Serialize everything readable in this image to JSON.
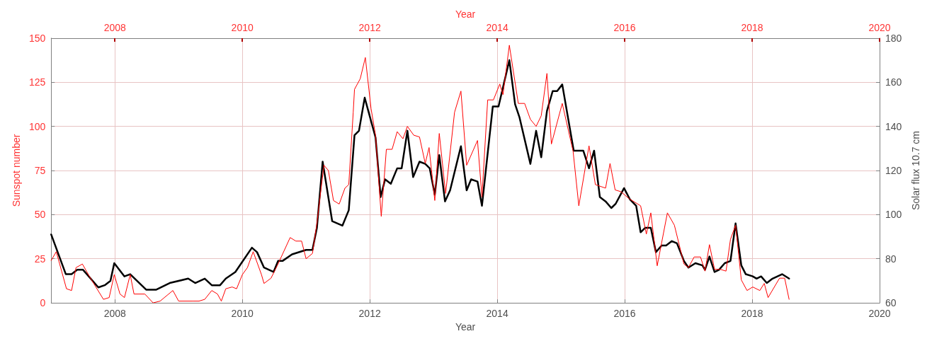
{
  "chart_data": {
    "type": "line",
    "xlabel": "Year",
    "x2label": "Year",
    "ylabel": "Sunspot number",
    "y2label": "Solar flux 10.7 cm",
    "xlim": [
      2007,
      2020
    ],
    "xticks": [
      2008,
      2010,
      2012,
      2014,
      2016,
      2018,
      2020
    ],
    "x2lim": [
      2007,
      2020
    ],
    "x2ticks": [
      2008,
      2010,
      2012,
      2014,
      2016,
      2018,
      2020
    ],
    "ylim": [
      0,
      150
    ],
    "yticks": [
      0,
      25,
      50,
      75,
      100,
      125,
      150
    ],
    "y2lim": [
      60,
      180
    ],
    "y2ticks": [
      60,
      80,
      100,
      120,
      140,
      160,
      180
    ],
    "grid": true,
    "marker": "none",
    "line_style": "solid",
    "series": [
      {
        "color": "#ff0000",
        "x": [
          2007.0,
          2007.08,
          2007.24,
          2007.32,
          2007.39,
          2007.49,
          2007.6,
          2007.82,
          2007.91,
          2007.99,
          2008.08,
          2008.15,
          2008.24,
          2008.3,
          2008.47,
          2008.6,
          2008.71,
          2008.91,
          2009.0,
          2009.23,
          2009.32,
          2009.41,
          2009.52,
          2009.61,
          2009.67,
          2009.74,
          2009.84,
          2009.91,
          2010.0,
          2010.08,
          2010.17,
          2010.3,
          2010.34,
          2010.45,
          2010.56,
          2010.75,
          2010.84,
          2010.93,
          2011.0,
          2011.1,
          2011.17,
          2011.28,
          2011.35,
          2011.43,
          2011.52,
          2011.61,
          2011.67,
          2011.74,
          2011.76,
          2011.85,
          2011.93,
          2012.02,
          2012.09,
          2012.18,
          2012.26,
          2012.35,
          2012.43,
          2012.52,
          2012.59,
          2012.69,
          2012.78,
          2012.87,
          2012.93,
          2013.02,
          2013.09,
          2013.19,
          2013.33,
          2013.43,
          2013.52,
          2013.69,
          2013.76,
          2013.85,
          2013.94,
          2014.04,
          2014.09,
          2014.19,
          2014.33,
          2014.43,
          2014.52,
          2014.61,
          2014.69,
          2014.78,
          2014.85,
          2015.02,
          2015.19,
          2015.28,
          2015.44,
          2015.54,
          2015.7,
          2015.77,
          2015.85,
          2015.94,
          2016.07,
          2016.16,
          2016.25,
          2016.34,
          2016.41,
          2016.51,
          2016.67,
          2016.78,
          2016.93,
          2017.0,
          2017.09,
          2017.19,
          2017.26,
          2017.33,
          2017.41,
          2017.5,
          2017.59,
          2017.66,
          2017.74,
          2017.83,
          2017.92,
          2018.01,
          2018.12,
          2018.19,
          2018.25,
          2018.43,
          2018.51,
          2018.58
        ],
        "values": [
          24,
          29,
          8,
          7,
          20,
          22,
          15,
          2,
          3,
          16,
          5,
          3,
          16,
          5,
          5,
          0,
          1,
          7,
          1,
          1,
          1,
          2,
          7,
          5,
          1,
          8,
          9,
          8,
          16,
          20,
          29,
          16,
          11,
          14,
          22,
          37,
          35,
          35,
          25,
          28,
          45,
          78,
          75,
          58,
          56,
          65,
          67,
          108,
          121,
          127,
          139,
          110,
          95,
          49,
          87,
          87,
          97,
          93,
          100,
          95,
          94,
          79,
          88,
          58,
          96,
          62,
          108,
          120,
          78,
          92,
          60,
          115,
          115,
          124,
          118,
          146,
          113,
          113,
          104,
          100,
          106,
          130,
          90,
          113,
          86,
          55,
          89,
          67,
          65,
          79,
          64,
          63,
          59,
          57,
          55,
          39,
          51,
          21,
          51,
          44,
          22,
          20,
          26,
          26,
          18,
          33,
          19,
          19,
          18,
          36,
          44,
          13,
          7,
          9,
          7,
          11,
          3,
          14,
          14,
          2
        ]
      },
      {
        "color": "#000000",
        "axis": "y2",
        "x": [
          2007.0,
          2007.23,
          2007.32,
          2007.41,
          2007.5,
          2007.74,
          2007.84,
          2007.93,
          2007.99,
          2008.15,
          2008.24,
          2008.49,
          2008.65,
          2008.86,
          2009.15,
          2009.26,
          2009.41,
          2009.52,
          2009.65,
          2009.74,
          2009.89,
          2010.15,
          2010.23,
          2010.34,
          2010.49,
          2010.56,
          2010.63,
          2010.78,
          2011.0,
          2011.1,
          2011.17,
          2011.26,
          2011.41,
          2011.57,
          2011.67,
          2011.76,
          2011.83,
          2011.92,
          2012.09,
          2012.17,
          2012.24,
          2012.33,
          2012.43,
          2012.5,
          2012.59,
          2012.68,
          2012.78,
          2012.87,
          2012.94,
          2013.02,
          2013.09,
          2013.18,
          2013.26,
          2013.43,
          2013.52,
          2013.59,
          2013.69,
          2013.76,
          2013.93,
          2014.02,
          2014.19,
          2014.28,
          2014.35,
          2014.52,
          2014.61,
          2014.69,
          2014.78,
          2014.87,
          2014.94,
          2015.02,
          2015.2,
          2015.35,
          2015.44,
          2015.52,
          2015.61,
          2015.7,
          2015.79,
          2015.86,
          2015.99,
          2016.08,
          2016.18,
          2016.25,
          2016.32,
          2016.41,
          2016.49,
          2016.58,
          2016.65,
          2016.74,
          2016.82,
          2016.93,
          2017.0,
          2017.11,
          2017.22,
          2017.26,
          2017.33,
          2017.41,
          2017.48,
          2017.57,
          2017.66,
          2017.74,
          2017.83,
          2017.9,
          2018.01,
          2018.07,
          2018.14,
          2018.23,
          2018.32,
          2018.47,
          2018.58
        ],
        "values": [
          91,
          73,
          73,
          75,
          75,
          67,
          68,
          70,
          78,
          72,
          73,
          66,
          66,
          69,
          71,
          69,
          71,
          68,
          68,
          71,
          74,
          85,
          83,
          76,
          74,
          79,
          79,
          82,
          84,
          84,
          94,
          124,
          97,
          95,
          102,
          136,
          138,
          153,
          135,
          108,
          116,
          114,
          121,
          121,
          138,
          117,
          124,
          123,
          121,
          109,
          127,
          106,
          111,
          131,
          111,
          116,
          115,
          104,
          149,
          149,
          170,
          150,
          144,
          123,
          138,
          126,
          147,
          156,
          156,
          159,
          129,
          129,
          121,
          129,
          108,
          106,
          103,
          105,
          112,
          107,
          104,
          92,
          94,
          94,
          83,
          86,
          86,
          88,
          87,
          79,
          76,
          78,
          77,
          75,
          81,
          74,
          75,
          78,
          79,
          96,
          77,
          73,
          72,
          71,
          72,
          69,
          71,
          73,
          71
        ]
      }
    ]
  }
}
